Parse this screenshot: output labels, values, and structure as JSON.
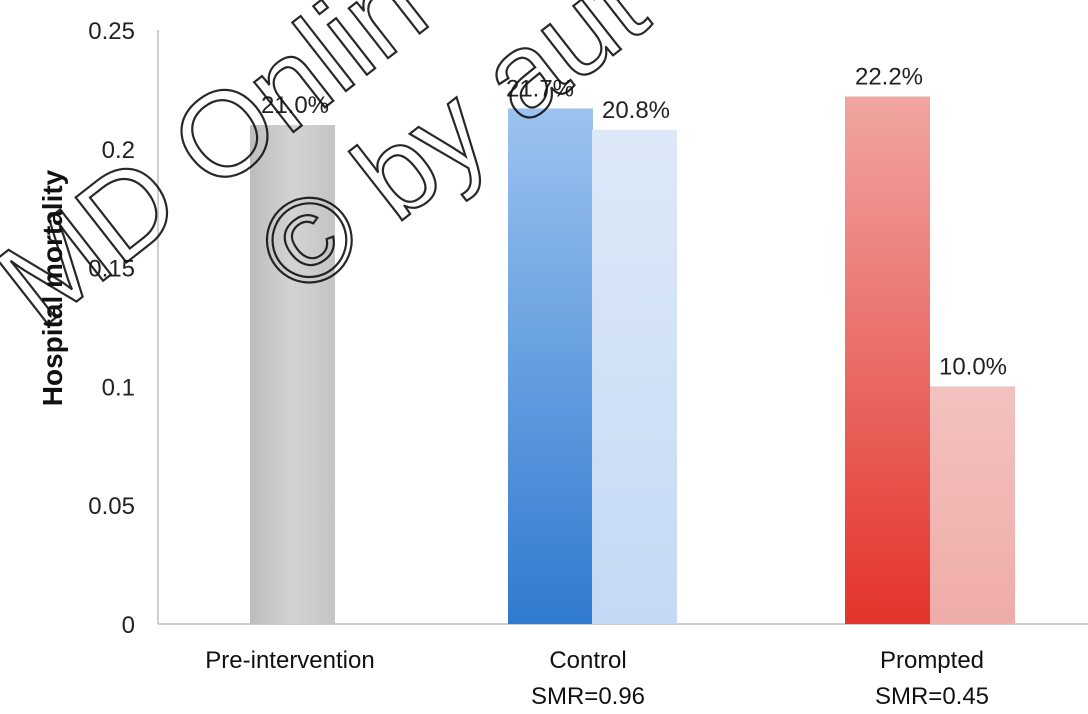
{
  "chart_data": {
    "type": "bar",
    "categories": [
      {
        "label": "Pre-intervention",
        "sublabel": ""
      },
      {
        "label": "Control",
        "sublabel": "SMR=0.96"
      },
      {
        "label": "Prompted",
        "sublabel": "SMR=0.45"
      }
    ],
    "bars": [
      {
        "category": 0,
        "value": 0.21,
        "label": "21.0%",
        "color": "#cccccc"
      },
      {
        "category": 1,
        "value": 0.217,
        "label": "21.7%",
        "color": "#3f86d6"
      },
      {
        "category": 1,
        "value": 0.208,
        "label": "20.8%",
        "color": "#cfe0f7"
      },
      {
        "category": 2,
        "value": 0.222,
        "label": "22.2%",
        "color": "#e8463f"
      },
      {
        "category": 2,
        "value": 0.1,
        "label": "10.0%",
        "color": "#f2b4b0"
      }
    ],
    "ylabel": "Hospital mortality",
    "ylim": [
      0,
      0.25
    ],
    "yticks": [
      "0",
      "0.05",
      "0.1",
      "0.15",
      "0.2",
      "0.25"
    ],
    "grid": false,
    "legend": "none"
  },
  "watermark": {
    "line1": "MD Onlin",
    "line2": "© by aut"
  }
}
